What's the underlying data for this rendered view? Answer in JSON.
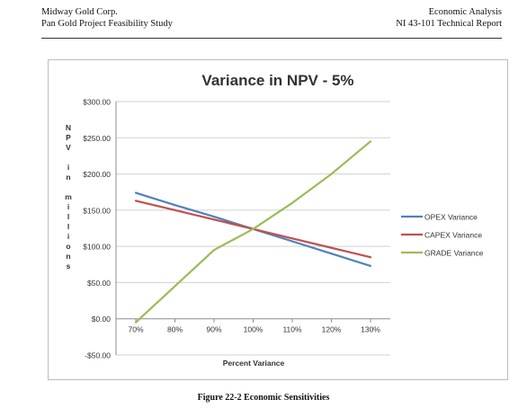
{
  "header": {
    "left_line1": "Midway Gold Corp.",
    "left_line2": "Pan Gold Project Feasibility Study",
    "right_line1": "Economic Analysis",
    "right_line2": "NI 43-101 Technical Report"
  },
  "caption": "Figure 22-2  Economic Sensitivities",
  "chart_data": {
    "type": "line",
    "title": "Variance in NPV - 5%",
    "xlabel": "Percent Variance",
    "ylabel": "NPV in millions",
    "categories": [
      "70%",
      "80%",
      "90%",
      "100%",
      "110%",
      "120%",
      "130%"
    ],
    "x": [
      70,
      80,
      90,
      100,
      110,
      120,
      130
    ],
    "y_ticks": [
      -50,
      0,
      50,
      100,
      150,
      200,
      250,
      300
    ],
    "y_tick_labels": [
      "-$50.00",
      "$0.00",
      "$50.00",
      "$100.00",
      "$150.00",
      "$200.00",
      "$250.00",
      "$300.00"
    ],
    "ylim": [
      -50,
      300
    ],
    "grid": true,
    "legend_position": "right",
    "series": [
      {
        "name": "OPEX Variance",
        "color": "#4f81bd",
        "values": [
          174,
          157,
          141,
          124,
          107,
          90,
          73
        ]
      },
      {
        "name": "CAPEX Variance",
        "color": "#c0504d",
        "values": [
          163,
          150,
          137,
          124,
          111,
          98,
          85
        ]
      },
      {
        "name": "GRADE Variance",
        "color": "#9bbb59",
        "values": [
          -5,
          45,
          95,
          124,
          160,
          200,
          245
        ]
      }
    ]
  }
}
